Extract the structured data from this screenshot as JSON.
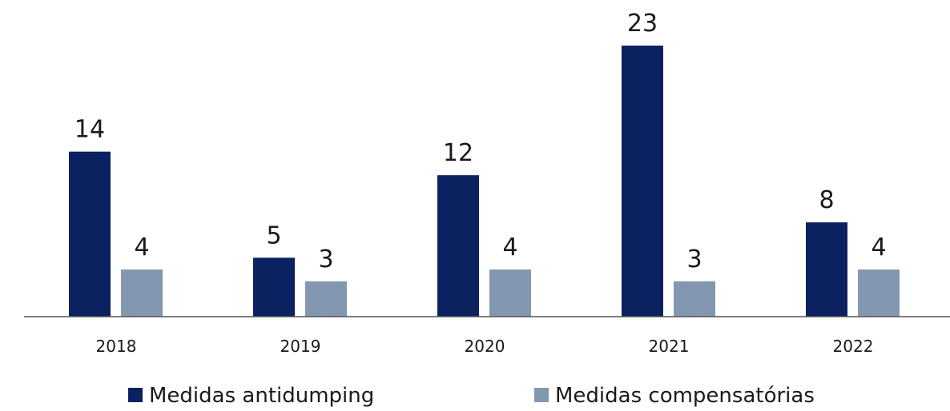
{
  "chart_data": {
    "type": "bar",
    "categories": [
      "2018",
      "2019",
      "2020",
      "2021",
      "2022"
    ],
    "series": [
      {
        "name": "Medidas antidumping",
        "color": "#0b2160",
        "values": [
          14,
          5,
          12,
          23,
          8
        ]
      },
      {
        "name": "Medidas compensatórias",
        "color": "#8497b0",
        "values": [
          4,
          3,
          4,
          3,
          4
        ]
      }
    ],
    "ylim": [
      0,
      23
    ]
  }
}
